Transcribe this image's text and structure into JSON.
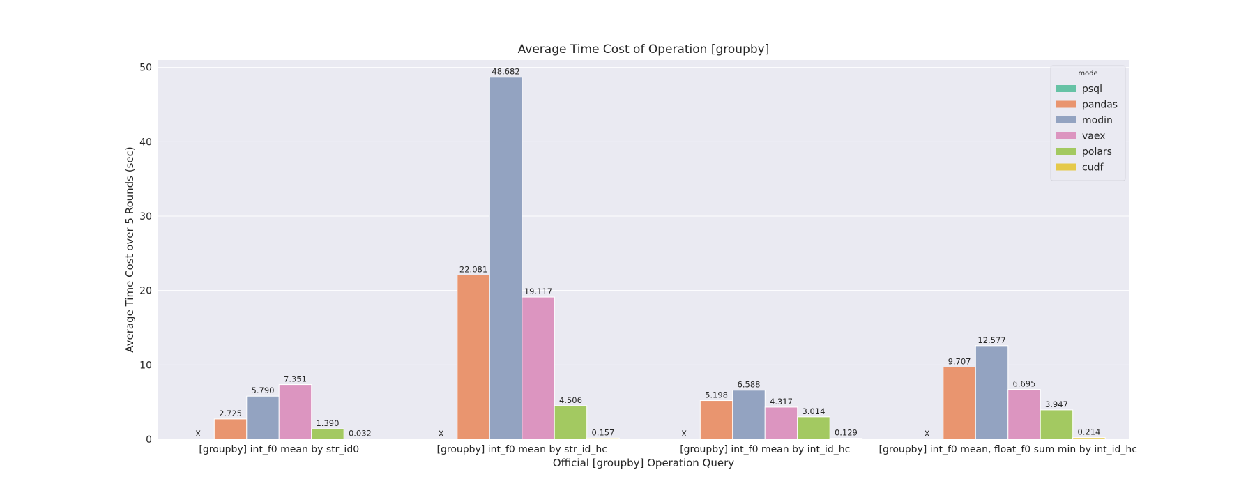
{
  "chart_data": {
    "type": "bar",
    "title": "Average Time Cost of Operation [groupby]",
    "xlabel": "Official [groupby] Operation Query",
    "ylabel": "Average Time Cost over 5 Rounds (sec)",
    "ylim": [
      0,
      51
    ],
    "yticks": [
      0,
      10,
      20,
      30,
      40,
      50
    ],
    "grid": true,
    "legend": {
      "title": "mode",
      "placement": "top-right"
    },
    "missing_marker": "X",
    "categories": [
      "[groupby] int_f0 mean by str_id0",
      "[groupby] int_f0 mean by str_id_hc",
      "[groupby] int_f0 mean by int_id_hc",
      "[groupby] int_f0 mean, float_f0 sum min by int_id_hc"
    ],
    "series": [
      {
        "name": "psql",
        "color": "#66c2a5",
        "values": [
          null,
          null,
          null,
          null
        ],
        "labels": [
          "X",
          "X",
          "X",
          "X"
        ]
      },
      {
        "name": "pandas",
        "color": "#e9956f",
        "values": [
          2.725,
          22.081,
          5.198,
          9.707
        ],
        "labels": [
          "2.725",
          "22.081",
          "5.198",
          "9.707"
        ]
      },
      {
        "name": "modin",
        "color": "#93a3c1",
        "values": [
          5.79,
          48.682,
          6.588,
          12.577
        ],
        "labels": [
          "5.790",
          "48.682",
          "6.588",
          "12.577"
        ]
      },
      {
        "name": "vaex",
        "color": "#dc95c0",
        "values": [
          7.351,
          19.117,
          4.317,
          6.695
        ],
        "labels": [
          "7.351",
          "19.117",
          "4.317",
          "6.695"
        ]
      },
      {
        "name": "polars",
        "color": "#a3c961",
        "values": [
          1.39,
          4.506,
          3.014,
          3.947
        ],
        "labels": [
          "1.390",
          "4.506",
          "3.014",
          "3.947"
        ]
      },
      {
        "name": "cudf",
        "color": "#e5c94a",
        "values": [
          0.032,
          0.157,
          0.129,
          0.214
        ],
        "labels": [
          "0.032",
          "0.157",
          "0.129",
          "0.214"
        ]
      }
    ]
  }
}
